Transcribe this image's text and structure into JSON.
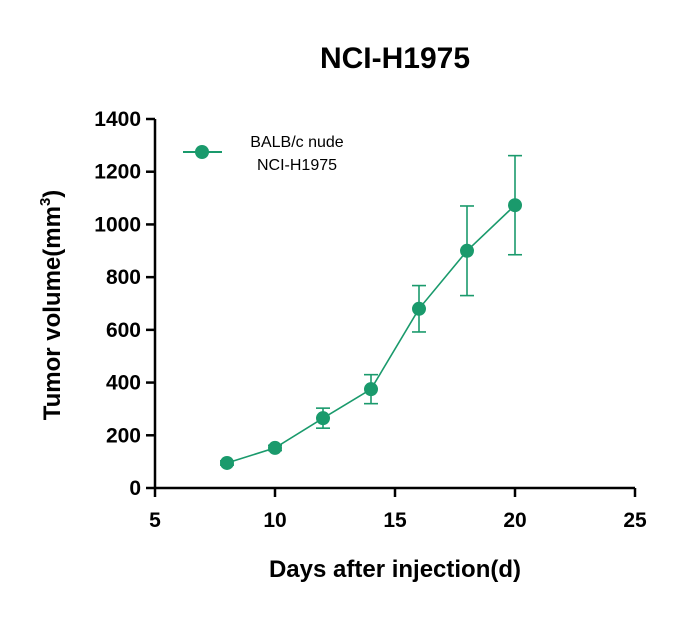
{
  "chart_data": {
    "type": "line",
    "title": "NCI-H1975",
    "xlabel": "Days after injection(d)",
    "ylabel_main": "Tumor volume(mm",
    "ylabel_sup": "3",
    "ylabel_end": ")",
    "xlim": [
      5,
      25
    ],
    "ylim": [
      0,
      1400
    ],
    "xticks": [
      5,
      10,
      15,
      20,
      25
    ],
    "yticks": [
      0,
      200,
      400,
      600,
      800,
      1000,
      1200,
      1400
    ],
    "grid": false,
    "legend_position": "top-left",
    "series": [
      {
        "name_line1": "BALB/c nude",
        "name_line2": "NCI-H1975",
        "color": "#1a9a6c",
        "x": [
          8,
          10,
          12,
          14,
          16,
          18,
          20
        ],
        "y": [
          95,
          152,
          265,
          375,
          680,
          900,
          1073
        ],
        "error": [
          8,
          10,
          38,
          55,
          88,
          170,
          188
        ]
      }
    ]
  }
}
